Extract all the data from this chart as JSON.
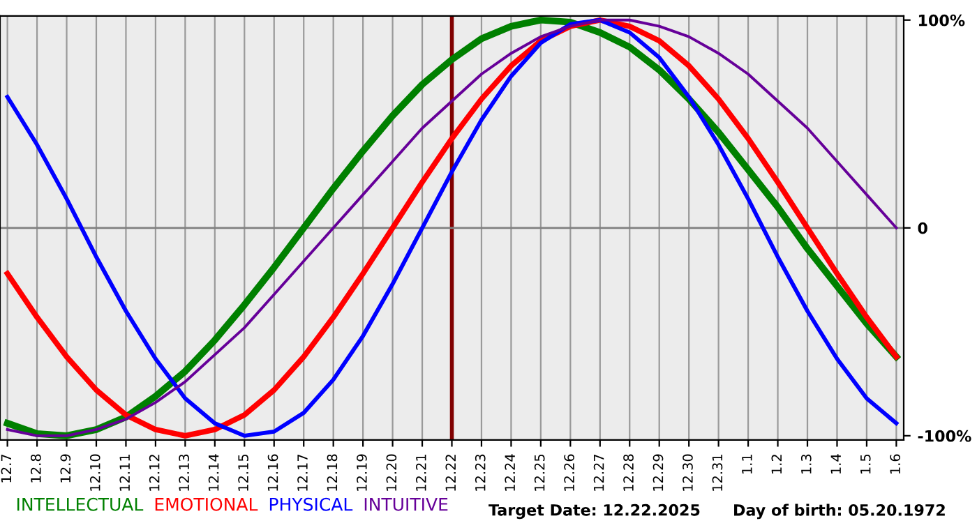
{
  "chart_data": {
    "type": "line",
    "categories": [
      "12.7",
      "12.8",
      "12.9",
      "12.10",
      "12.11",
      "12.12",
      "12.13",
      "12.14",
      "12.15",
      "12.16",
      "12.17",
      "12.18",
      "12.19",
      "12.20",
      "12.21",
      "12.22",
      "12.23",
      "12.24",
      "12.25",
      "12.26",
      "12.27",
      "12.28",
      "12.29",
      "12.30",
      "12.31",
      "1.1",
      "1.2",
      "1.3",
      "1.4",
      "1.5",
      "1.6"
    ],
    "series": [
      {
        "name": "INTELLECTUAL",
        "color": "#008000",
        "values": [
          -94,
          -99,
          -100,
          -97,
          -91,
          -81,
          -69,
          -54,
          -37,
          -19,
          0,
          19,
          37,
          54,
          69,
          81,
          91,
          97,
          100,
          99,
          94,
          87,
          76,
          62,
          46,
          28,
          10,
          -10,
          -28,
          -46,
          -62
        ]
      },
      {
        "name": "EMOTIONAL",
        "color": "#ff0000",
        "values": [
          -22,
          -43,
          -62,
          -78,
          -90,
          -97,
          -100,
          -97,
          -90,
          -78,
          -62,
          -43,
          -22,
          0,
          22,
          43,
          62,
          78,
          90,
          97,
          100,
          97,
          90,
          78,
          62,
          43,
          22,
          0,
          -22,
          -43,
          -62
        ]
      },
      {
        "name": "PHYSICAL",
        "color": "#0000ff",
        "values": [
          63,
          40,
          14,
          -14,
          -40,
          -63,
          -82,
          -94,
          -100,
          -98,
          -89,
          -73,
          -52,
          -27,
          0,
          27,
          52,
          73,
          89,
          98,
          100,
          94,
          82,
          63,
          40,
          14,
          -14,
          -40,
          -63,
          -82,
          -94
        ]
      },
      {
        "name": "INTUITIVE",
        "color": "#660099",
        "values": [
          -97,
          -100,
          -100,
          -97,
          -92,
          -84,
          -74,
          -61,
          -48,
          -32,
          -16,
          0,
          16,
          32,
          48,
          61,
          74,
          84,
          92,
          97,
          100,
          100,
          97,
          92,
          84,
          74,
          61,
          48,
          32,
          16,
          0
        ]
      }
    ],
    "ylim": [
      -102,
      102
    ],
    "yticks": [
      {
        "value": 100,
        "label": "100%"
      },
      0,
      {
        "value": -100,
        "label": "-100%"
      }
    ],
    "ref_lines": [
      {
        "axis": "x",
        "value": "12.22",
        "color": "#800000"
      },
      {
        "axis": "y",
        "value": 0,
        "color": "#808080"
      }
    ],
    "annotations": [
      "Target Date: 12.22.2025",
      "Day of birth: 05.20.1972"
    ],
    "grid": "x",
    "legend": "bottom",
    "marker": "none",
    "line_style": "solid"
  }
}
